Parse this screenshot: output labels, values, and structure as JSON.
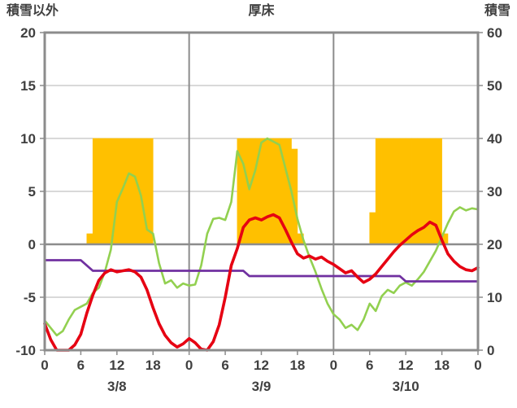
{
  "header": {
    "left_axis_title": "積雪以外",
    "station": "厚床",
    "right_axis_title": "積雪"
  },
  "chart_data": {
    "type": "line",
    "title": "厚床",
    "left_axis": {
      "label": "積雪以外",
      "min": -10,
      "max": 20,
      "ticks": [
        20,
        15,
        10,
        5,
        0,
        -5,
        -10
      ]
    },
    "right_axis": {
      "label": "積雪",
      "min": 0,
      "max": 60,
      "ticks": [
        60,
        50,
        40,
        30,
        20,
        10,
        0
      ]
    },
    "x_axis": {
      "hours_total": 72,
      "tick_step": 6,
      "tick_labels": [
        "0",
        "6",
        "12",
        "18",
        "0",
        "6",
        "12",
        "18",
        "0",
        "6",
        "12",
        "18",
        "0"
      ],
      "day_labels": [
        "3/8",
        "3/9",
        "3/10"
      ]
    },
    "colors": {
      "background": "#ffffff",
      "grid": "#b3b3b3",
      "axis": "#8c8c8c",
      "text": "#404040",
      "bars": "#ffc000",
      "red_line": "#e60012",
      "green_line": "#92d050",
      "purple_line": "#7030a0"
    },
    "series": [
      {
        "name": "sunshine-bars",
        "type": "bar",
        "axis": "left",
        "color": "#ffc000",
        "values": [
          0,
          0,
          0,
          0,
          0,
          0,
          0,
          1,
          10,
          10,
          10,
          10,
          10,
          10,
          10,
          10,
          10,
          10,
          0,
          0,
          0,
          0,
          0,
          0,
          0,
          0,
          0,
          0,
          0,
          0,
          0,
          0,
          10,
          10,
          10,
          10,
          10,
          10,
          10,
          10,
          10,
          9,
          1,
          0,
          0,
          0,
          0,
          0,
          0,
          0,
          0,
          0,
          0,
          0,
          3,
          10,
          10,
          10,
          10,
          10,
          10,
          10,
          10,
          10,
          10,
          10,
          1,
          0,
          0,
          0,
          0,
          0
        ]
      },
      {
        "name": "green-line",
        "type": "line",
        "axis": "left",
        "color": "#92d050",
        "width": 2.6,
        "values": [
          -7.2,
          -7.9,
          -8.6,
          -8.2,
          -7.1,
          -6.2,
          -5.9,
          -5.6,
          -4.6,
          -4.1,
          -2.6,
          -0.5,
          4,
          5.3,
          6.7,
          6.4,
          4.6,
          1.4,
          1,
          -1.8,
          -3.7,
          -3.4,
          -4.1,
          -3.7,
          -3.9,
          -3.8,
          -2,
          1,
          2.4,
          2.5,
          2.3,
          4,
          8.8,
          7.6,
          5.2,
          7,
          9.6,
          10,
          9.7,
          9.4,
          7.2,
          5,
          2.4,
          0.4,
          -1.2,
          -2.6,
          -4.2,
          -5.6,
          -6.6,
          -7.1,
          -7.9,
          -7.6,
          -8.1,
          -7.1,
          -5.6,
          -6.3,
          -4.9,
          -4.3,
          -4.6,
          -3.9,
          -3.6,
          -3.9,
          -3.3,
          -2.6,
          -1.6,
          -0.6,
          0.7,
          2,
          3.1,
          3.5,
          3.2,
          3.4,
          3.3
        ]
      },
      {
        "name": "snow-depth-line",
        "type": "line",
        "axis": "right",
        "color": "#7030a0",
        "width": 2.8,
        "values": [
          17,
          17,
          17,
          17,
          17,
          17,
          17,
          16,
          15,
          15,
          15,
          15,
          15,
          15,
          15,
          15,
          15,
          15,
          15,
          15,
          15,
          15,
          15,
          15,
          15,
          15,
          15,
          15,
          15,
          15,
          15,
          15,
          15,
          15,
          14,
          14,
          14,
          14,
          14,
          14,
          14,
          14,
          14,
          14,
          14,
          14,
          14,
          14,
          14,
          14,
          14,
          14,
          14,
          14,
          14,
          14,
          14,
          14,
          14,
          14,
          13,
          13,
          13,
          13,
          13,
          13,
          13,
          13,
          13,
          13,
          13,
          13,
          13
        ]
      },
      {
        "name": "temperature-line",
        "type": "line",
        "axis": "left",
        "color": "#e60012",
        "width": 3.6,
        "values": [
          -7.5,
          -9,
          -10,
          -10,
          -10,
          -9.5,
          -8.5,
          -6.5,
          -4.8,
          -3.4,
          -2.7,
          -2.4,
          -2.6,
          -2.5,
          -2.4,
          -2.6,
          -3.1,
          -4.3,
          -6,
          -7.5,
          -8.6,
          -9.3,
          -9.7,
          -9.4,
          -8.9,
          -9.3,
          -9.9,
          -10,
          -9.2,
          -7.6,
          -5,
          -2,
          -0.4,
          1.6,
          2.3,
          2.5,
          2.3,
          2.6,
          2.8,
          2.5,
          1.4,
          0.2,
          -0.9,
          -1.3,
          -1.1,
          -1.4,
          -1.2,
          -1.6,
          -1.9,
          -2.3,
          -2.7,
          -2.5,
          -3.1,
          -3.6,
          -3.3,
          -2.8,
          -2.1,
          -1.4,
          -0.7,
          -0.1,
          0.4,
          0.9,
          1.3,
          1.6,
          2.1,
          1.8,
          0.4,
          -0.9,
          -1.6,
          -2.1,
          -2.4,
          -2.5,
          -2.2
        ]
      }
    ]
  }
}
